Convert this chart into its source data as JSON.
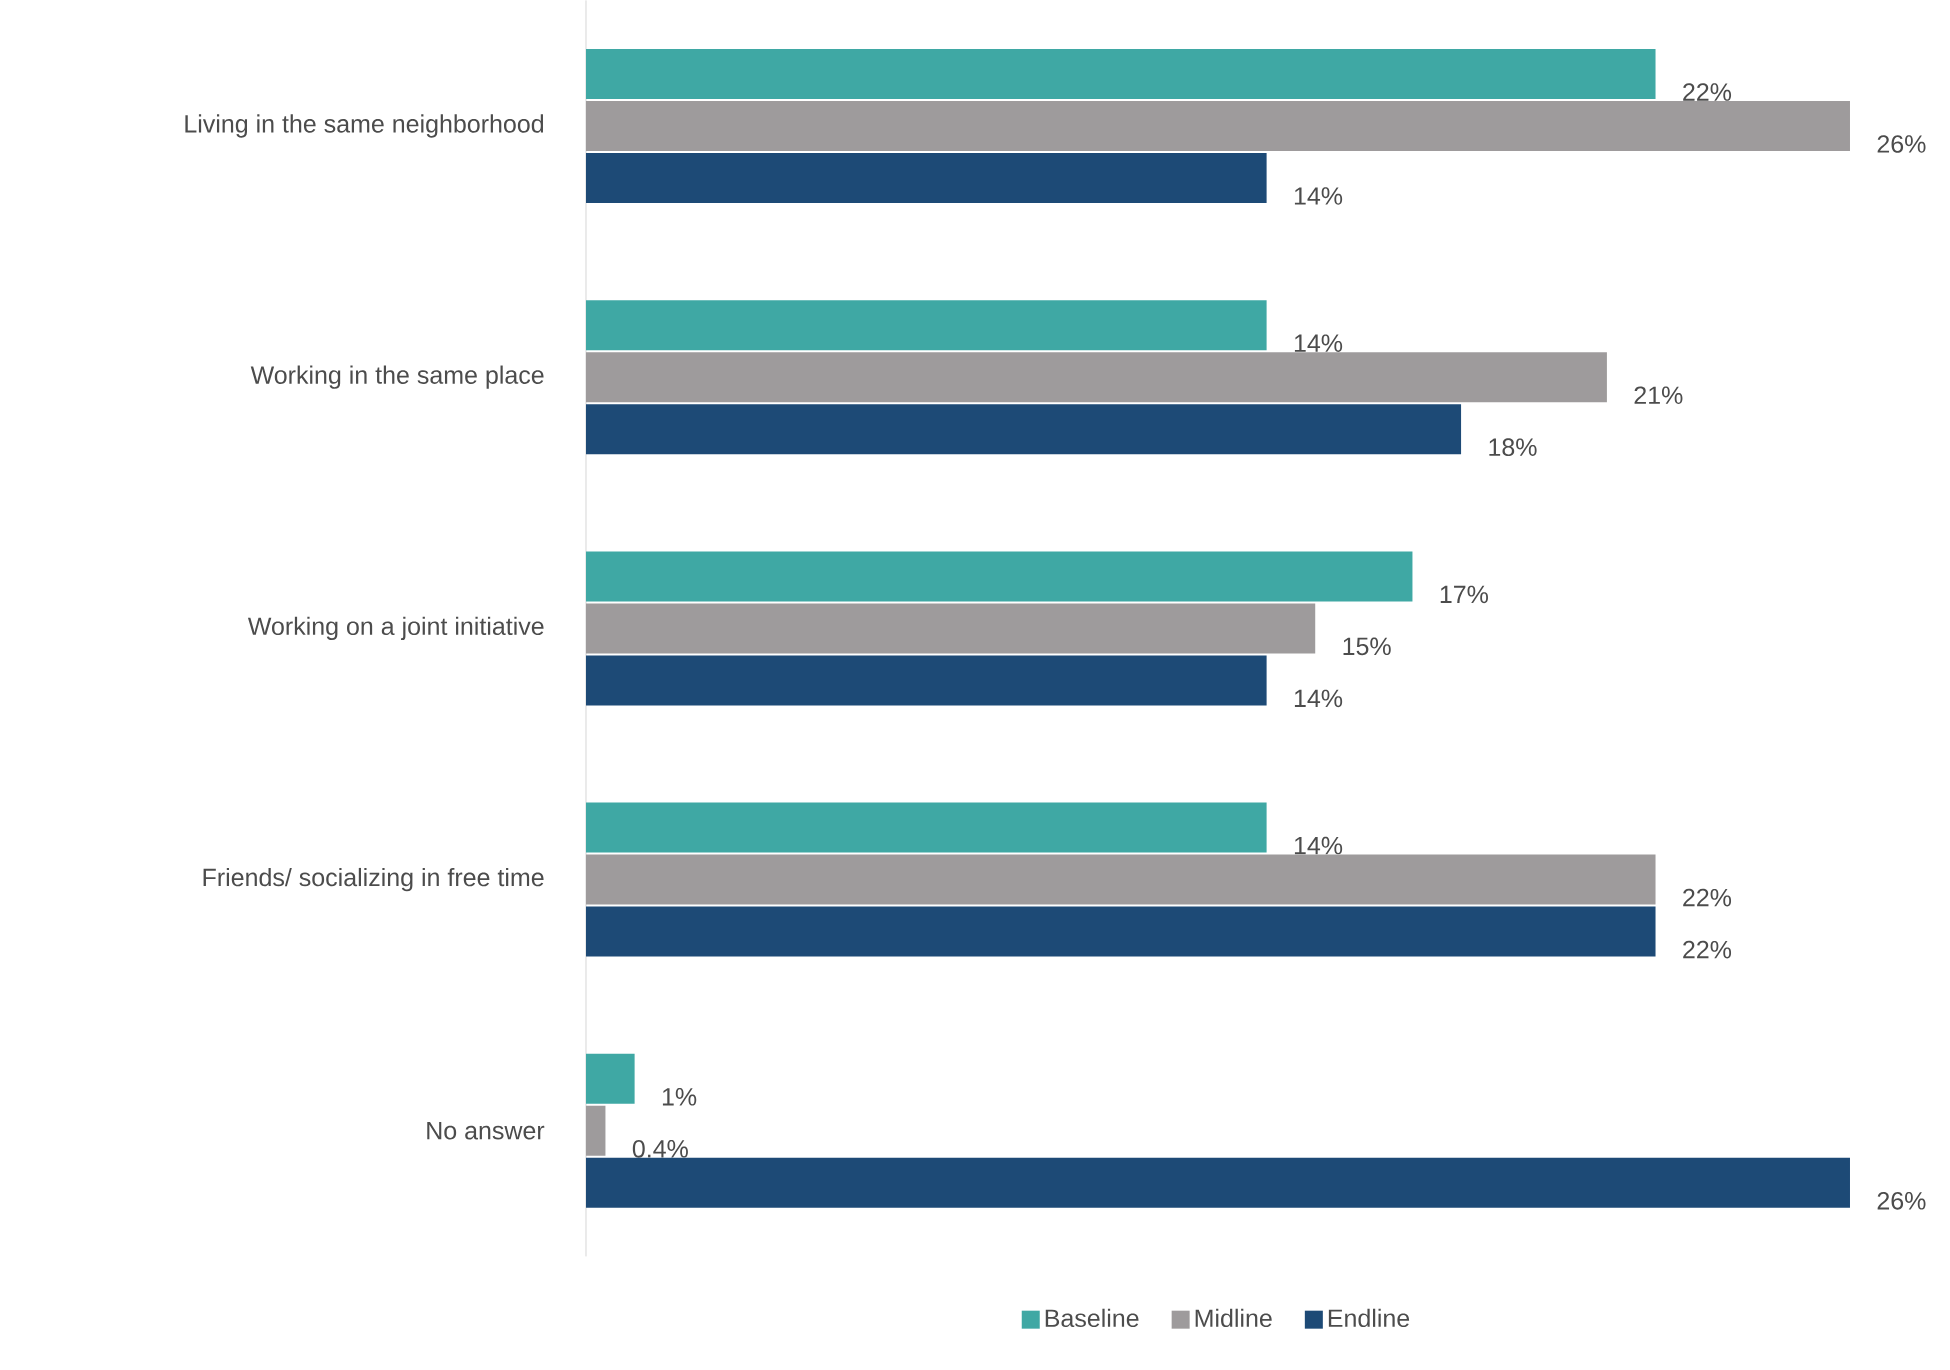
{
  "chart_data": {
    "type": "bar",
    "orientation": "horizontal",
    "categories": [
      "Living in the same neighborhood",
      "Working in the same place",
      "Working on a joint initiative",
      "Friends/ socializing in free time",
      "No answer"
    ],
    "xlim": [
      0,
      26
    ],
    "legend": "bottom",
    "series": [
      {
        "name": "Baseline",
        "color": "#3fa8a4",
        "values": [
          22,
          14,
          17,
          14,
          1
        ],
        "value_labels": [
          "22%",
          "14%",
          "17%",
          "14%",
          "1%"
        ]
      },
      {
        "name": "Midline",
        "color": "#9e9b9c",
        "values": [
          26,
          21,
          15,
          22,
          0.4
        ],
        "value_labels": [
          "26%",
          "21%",
          "15%",
          "22%",
          "0.4%"
        ]
      },
      {
        "name": "Endline",
        "color": "#1d4a76",
        "values": [
          14,
          18,
          14,
          22,
          26
        ],
        "value_labels": [
          "14%",
          "18%",
          "14%",
          "22%",
          "26%"
        ]
      }
    ]
  }
}
